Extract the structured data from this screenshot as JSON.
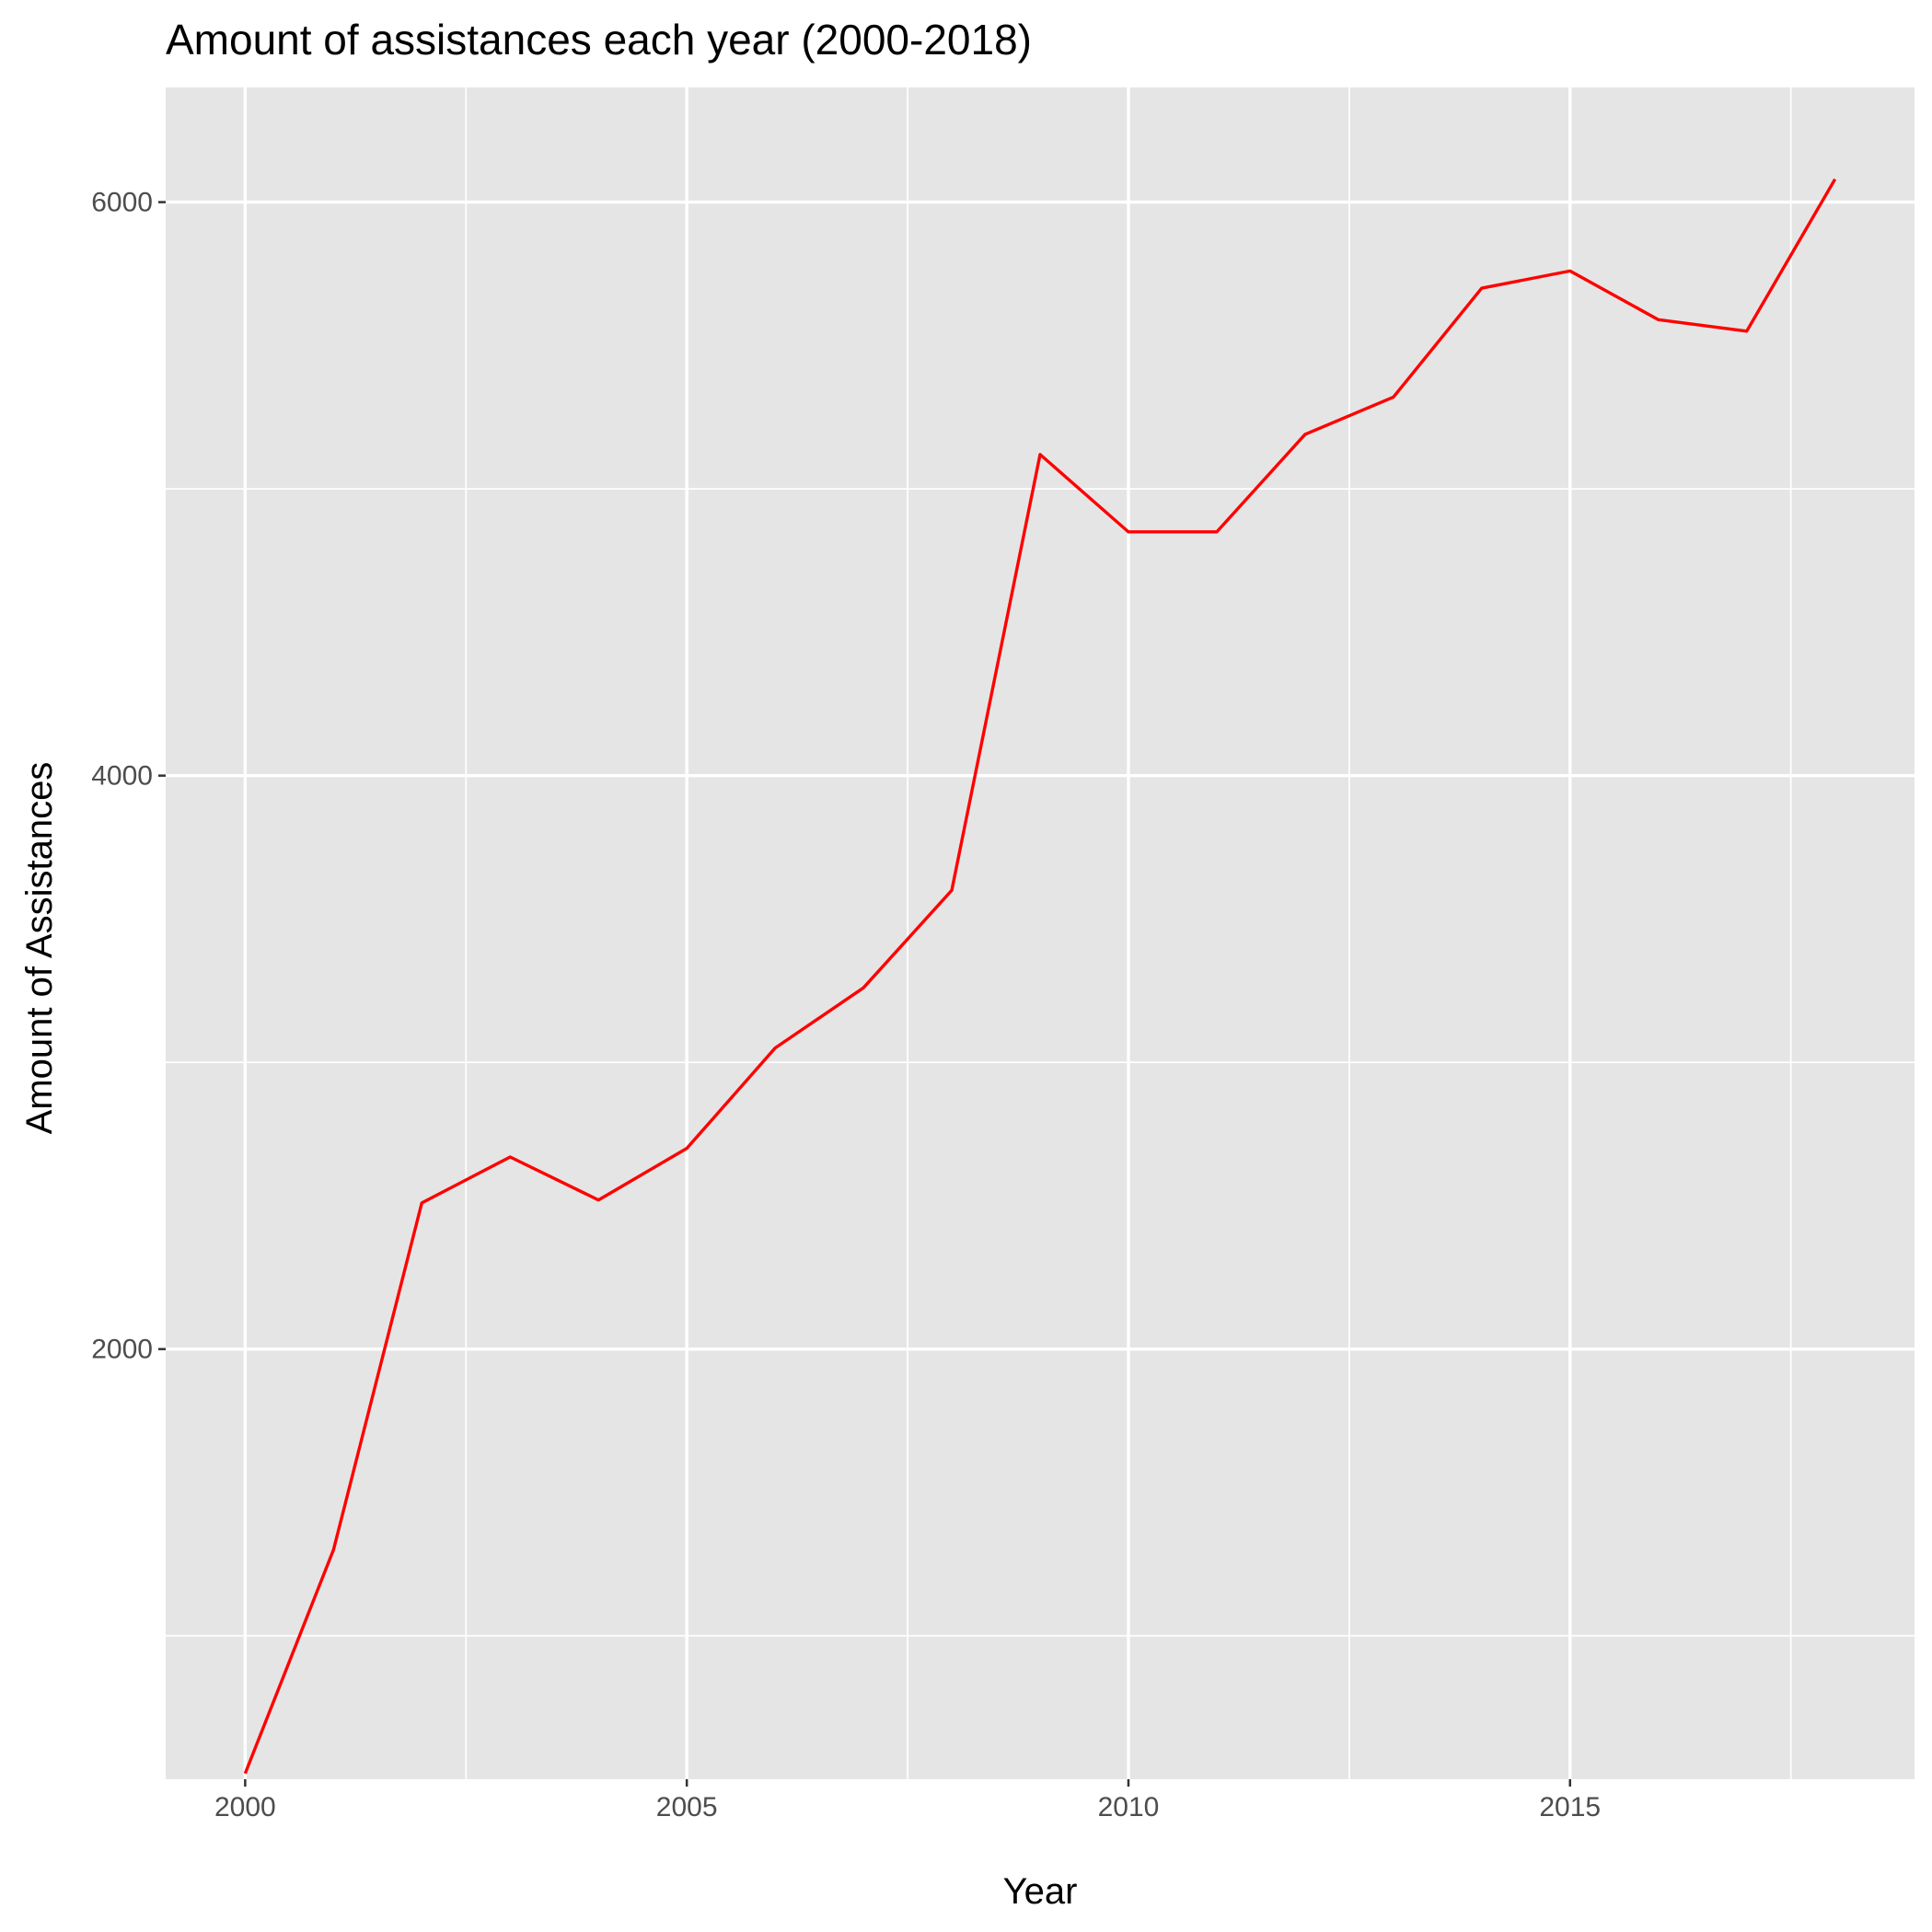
{
  "chart_data": {
    "type": "line",
    "title": "Amount of assistances each year (2000-2018)",
    "xlabel": "Year",
    "ylabel": "Amount of Assistances",
    "xlim": [
      1999.1,
      2018.9
    ],
    "ylim": [
      500,
      6400
    ],
    "x_ticks": [
      2000,
      2005,
      2010,
      2015
    ],
    "x_tick_labels": [
      "2000",
      "2005",
      "2010",
      "2015"
    ],
    "x_minor_ticks": [
      2002.5,
      2007.5,
      2012.5,
      2017.5
    ],
    "y_ticks": [
      2000,
      4000,
      6000
    ],
    "y_tick_labels": [
      "2000",
      "4000",
      "6000"
    ],
    "y_minor_ticks": [
      1000,
      3000,
      5000
    ],
    "grid": true,
    "background_color": "#e5e5e5",
    "series": [
      {
        "color": "#ff0000",
        "x": [
          2000,
          2001,
          2002,
          2003,
          2004,
          2005,
          2006,
          2007,
          2008,
          2009,
          2010,
          2011,
          2012,
          2013,
          2014,
          2015,
          2016,
          2017,
          2018
        ],
        "values": [
          520,
          1300,
          2510,
          2670,
          2520,
          2700,
          3050,
          3260,
          3600,
          5120,
          4850,
          4850,
          5190,
          5320,
          5700,
          5760,
          5590,
          5550,
          6080
        ]
      }
    ]
  }
}
